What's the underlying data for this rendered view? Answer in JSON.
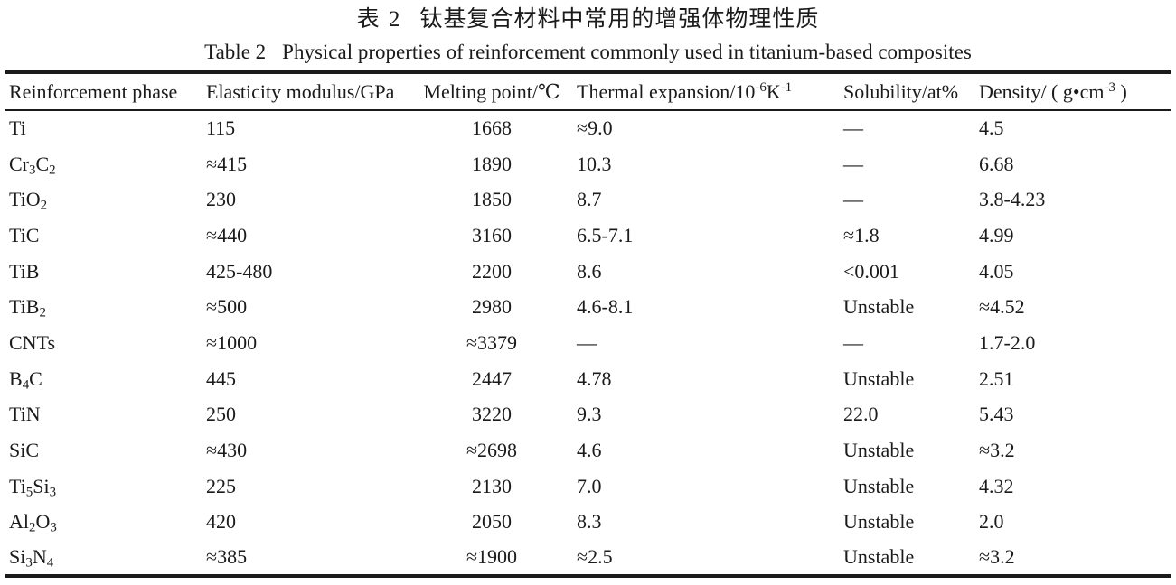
{
  "page": {
    "caption_zh": {
      "label": "表 2",
      "text": "钛基复合材料中常用的增强体物理性质"
    },
    "caption_en": {
      "label": "Table 2",
      "text": "Physical properties of reinforcement commonly used in titanium-based composites"
    }
  },
  "colors": {
    "text": "#1b1b1b",
    "rule": "#1b1b1b",
    "background": "#ffffff"
  },
  "chart_data": {
    "type": "table",
    "title": "Table 2  Physical properties of reinforcement commonly used in titanium-based composites",
    "columns": [
      "Reinforcement phase",
      "Elasticity modulus/GPa",
      "Melting point/℃",
      "Thermal expansion/10⁻⁶K⁻¹",
      "Solubility/at%",
      "Density/ ( g•cm⁻³ )"
    ]
  },
  "table": {
    "columns": [
      "Reinforcement phase",
      "Elasticity modulus/GPa",
      "Melting point/℃",
      "Thermal expansion/10^{-6}K^{-1}",
      "Solubility/at%",
      "Density/ ( g•cm^{-3} )"
    ],
    "rows": [
      {
        "phase": "Ti",
        "elasticity": "115",
        "melting": "1668",
        "thermal": "≈9.0",
        "solubility": "—",
        "density": "4.5"
      },
      {
        "phase": "Cr_{3}C_{2}",
        "elasticity": "≈415",
        "melting": "1890",
        "thermal": "10.3",
        "solubility": "—",
        "density": "6.68"
      },
      {
        "phase": "TiO_{2}",
        "elasticity": "230",
        "melting": "1850",
        "thermal": "8.7",
        "solubility": "—",
        "density": "3.8-4.23"
      },
      {
        "phase": "TiC",
        "elasticity": "≈440",
        "melting": "3160",
        "thermal": "6.5-7.1",
        "solubility": "≈1.8",
        "density": "4.99"
      },
      {
        "phase": "TiB",
        "elasticity": "425-480",
        "melting": "2200",
        "thermal": "8.6",
        "solubility": "<0.001",
        "density": "4.05"
      },
      {
        "phase": "TiB_{2}",
        "elasticity": "≈500",
        "melting": "2980",
        "thermal": "4.6-8.1",
        "solubility": "Unstable",
        "density": "≈4.52"
      },
      {
        "phase": "CNTs",
        "elasticity": "≈1000",
        "melting": "≈3379",
        "thermal": "—",
        "solubility": "—",
        "density": "1.7-2.0"
      },
      {
        "phase": "B_{4}C",
        "elasticity": "445",
        "melting": "2447",
        "thermal": "4.78",
        "solubility": "Unstable",
        "density": "2.51"
      },
      {
        "phase": "TiN",
        "elasticity": "250",
        "melting": "3220",
        "thermal": "9.3",
        "solubility": "22.0",
        "density": "5.43"
      },
      {
        "phase": "SiC",
        "elasticity": "≈430",
        "melting": "≈2698",
        "thermal": "4.6",
        "solubility": "Unstable",
        "density": "≈3.2"
      },
      {
        "phase": "Ti_{5}Si_{3}",
        "elasticity": "225",
        "melting": "2130",
        "thermal": "7.0",
        "solubility": "Unstable",
        "density": "4.32"
      },
      {
        "phase": "Al_{2}O_{3}",
        "elasticity": "420",
        "melting": "2050",
        "thermal": "8.3",
        "solubility": "Unstable",
        "density": "2.0"
      },
      {
        "phase": "Si_{3}N_{4}",
        "elasticity": "≈385",
        "melting": "≈1900",
        "thermal": "≈2.5",
        "solubility": "Unstable",
        "density": "≈3.2"
      }
    ]
  }
}
